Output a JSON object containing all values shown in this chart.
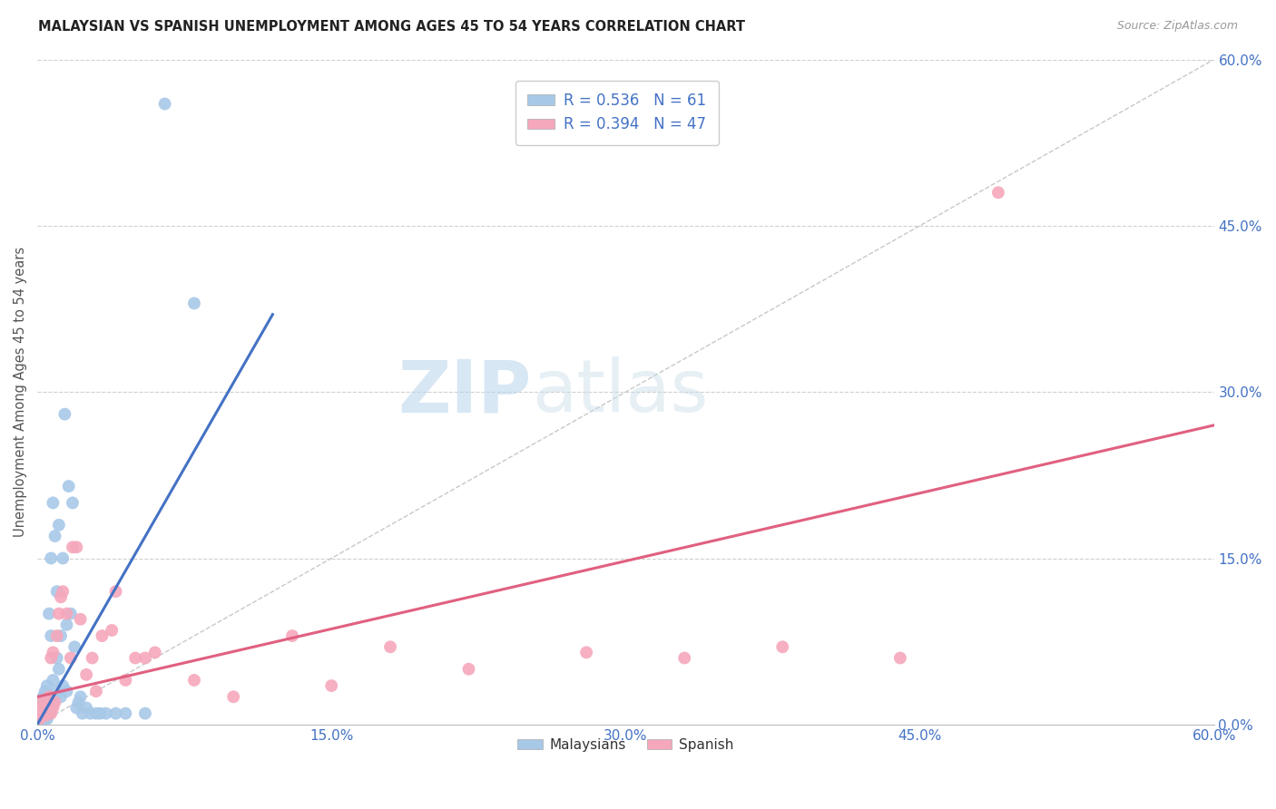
{
  "title": "MALAYSIAN VS SPANISH UNEMPLOYMENT AMONG AGES 45 TO 54 YEARS CORRELATION CHART",
  "source": "Source: ZipAtlas.com",
  "ylabel": "Unemployment Among Ages 45 to 54 years",
  "xlim": [
    0.0,
    0.6
  ],
  "ylim": [
    0.0,
    0.6
  ],
  "xtick_labels": [
    "0.0%",
    "15.0%",
    "30.0%",
    "45.0%",
    "60.0%"
  ],
  "xtick_vals": [
    0.0,
    0.15,
    0.3,
    0.45,
    0.6
  ],
  "ytick_labels_right": [
    "60.0%",
    "45.0%",
    "30.0%",
    "15.0%",
    "0.0%"
  ],
  "ytick_vals_right": [
    0.6,
    0.45,
    0.3,
    0.15,
    0.0
  ],
  "legend_r_malaysia": "R = 0.536",
  "legend_n_malaysia": "N = 61",
  "legend_r_spanish": "R = 0.394",
  "legend_n_spanish": "N = 47",
  "malaysia_color": "#a8c8e8",
  "spanish_color": "#f5a8bc",
  "malaysia_line_color": "#4472c4",
  "spanish_line_color": "#e06080",
  "diagonal_color": "#c8c8c8",
  "background_color": "#ffffff",
  "watermark_zip": "ZIP",
  "watermark_atlas": "atlas",
  "watermark_color": "#cce0f0",
  "malaysia_x": [
    0.001,
    0.001,
    0.001,
    0.002,
    0.002,
    0.002,
    0.002,
    0.003,
    0.003,
    0.003,
    0.003,
    0.004,
    0.004,
    0.004,
    0.004,
    0.005,
    0.005,
    0.005,
    0.005,
    0.006,
    0.006,
    0.006,
    0.007,
    0.007,
    0.007,
    0.007,
    0.008,
    0.008,
    0.008,
    0.009,
    0.009,
    0.01,
    0.01,
    0.01,
    0.011,
    0.011,
    0.012,
    0.012,
    0.013,
    0.013,
    0.014,
    0.015,
    0.015,
    0.016,
    0.017,
    0.018,
    0.019,
    0.02,
    0.021,
    0.022,
    0.023,
    0.025,
    0.027,
    0.03,
    0.032,
    0.035,
    0.04,
    0.045,
    0.055,
    0.065,
    0.08
  ],
  "malaysia_y": [
    0.005,
    0.008,
    0.012,
    0.005,
    0.01,
    0.015,
    0.02,
    0.005,
    0.012,
    0.018,
    0.025,
    0.005,
    0.01,
    0.02,
    0.03,
    0.005,
    0.015,
    0.025,
    0.035,
    0.01,
    0.02,
    0.1,
    0.015,
    0.025,
    0.08,
    0.15,
    0.02,
    0.04,
    0.2,
    0.025,
    0.17,
    0.03,
    0.06,
    0.12,
    0.05,
    0.18,
    0.025,
    0.08,
    0.035,
    0.15,
    0.28,
    0.03,
    0.09,
    0.215,
    0.1,
    0.2,
    0.07,
    0.015,
    0.02,
    0.025,
    0.01,
    0.015,
    0.01,
    0.01,
    0.01,
    0.01,
    0.01,
    0.01,
    0.01,
    0.56,
    0.38
  ],
  "spanish_x": [
    0.001,
    0.001,
    0.002,
    0.002,
    0.003,
    0.003,
    0.004,
    0.004,
    0.005,
    0.005,
    0.006,
    0.006,
    0.007,
    0.007,
    0.008,
    0.008,
    0.009,
    0.01,
    0.011,
    0.012,
    0.013,
    0.015,
    0.017,
    0.018,
    0.02,
    0.022,
    0.025,
    0.028,
    0.03,
    0.033,
    0.038,
    0.04,
    0.045,
    0.05,
    0.055,
    0.06,
    0.08,
    0.1,
    0.13,
    0.15,
    0.18,
    0.22,
    0.28,
    0.33,
    0.38,
    0.44,
    0.49
  ],
  "spanish_y": [
    0.005,
    0.012,
    0.008,
    0.02,
    0.01,
    0.015,
    0.008,
    0.018,
    0.01,
    0.02,
    0.012,
    0.025,
    0.01,
    0.06,
    0.015,
    0.065,
    0.02,
    0.08,
    0.1,
    0.115,
    0.12,
    0.1,
    0.06,
    0.16,
    0.16,
    0.095,
    0.045,
    0.06,
    0.03,
    0.08,
    0.085,
    0.12,
    0.04,
    0.06,
    0.06,
    0.065,
    0.04,
    0.025,
    0.08,
    0.035,
    0.07,
    0.05,
    0.065,
    0.06,
    0.07,
    0.06,
    0.48
  ],
  "malaysia_line_x": [
    0.0,
    0.12
  ],
  "malaysia_line_y": [
    0.0,
    0.37
  ],
  "spanish_line_x": [
    0.0,
    0.6
  ],
  "spanish_line_y": [
    0.025,
    0.27
  ]
}
